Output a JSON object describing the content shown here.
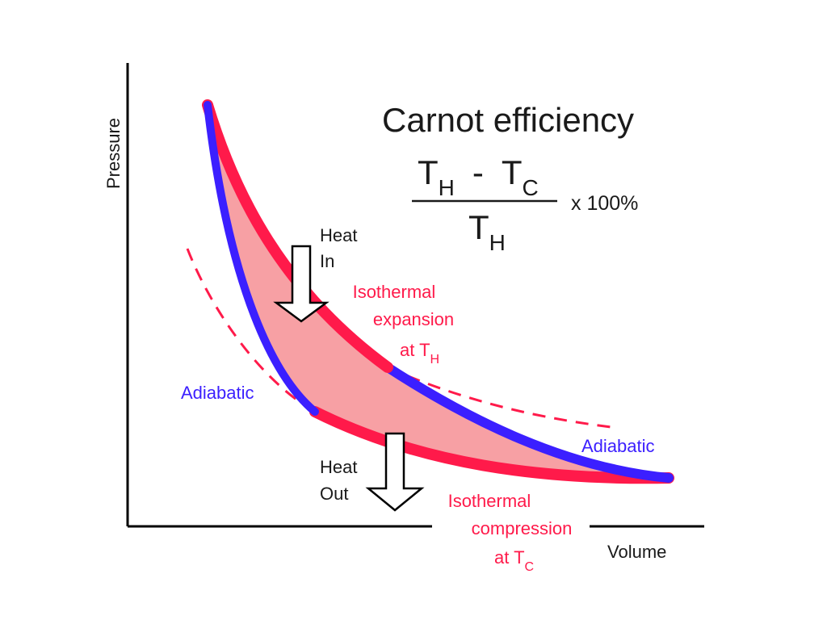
{
  "colors": {
    "isotherm": "#ff1a4a",
    "adiabat": "#3b1fff",
    "cycle_fill": "#f7a0a4",
    "axis": "#000000",
    "text": "#1a1a1a",
    "label_red": "#ff1a4a",
    "label_blue": "#3b1fff"
  },
  "axes": {
    "y_label": "Pressure",
    "x_label": "Volume"
  },
  "formula": {
    "title": "Carnot efficiency",
    "numerator_t1": "T",
    "numerator_t1_sub": "H",
    "numerator_op": "-",
    "numerator_t2": "T",
    "numerator_t2_sub": "C",
    "denominator_t": "T",
    "denominator_sub": "H",
    "multiplier": "x 100%"
  },
  "labels": {
    "heat_in_1": "Heat",
    "heat_in_2": "In",
    "heat_out_1": "Heat",
    "heat_out_2": "Out",
    "iso_exp_1": "Isothermal",
    "iso_exp_2": "expansion",
    "iso_exp_3": "at  T",
    "iso_exp_sub": "H",
    "iso_comp_1": "Isothermal",
    "iso_comp_2": "compression",
    "iso_comp_3": "at  T",
    "iso_comp_sub": "C",
    "adiabatic_left": "Adiabatic",
    "adiabatic_right": "Adiabatic"
  },
  "icons": {
    "heat_in": "down-arrow-icon",
    "heat_out": "down-arrow-icon"
  }
}
